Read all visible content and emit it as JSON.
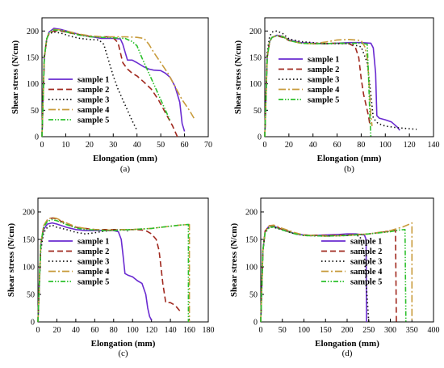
{
  "chart_data": [
    {
      "type": "line",
      "panel_label": "(a)",
      "xlabel": "Elongation (mm)",
      "ylabel": "Shear stress (N/cm)",
      "xlim": [
        0,
        70
      ],
      "ylim": [
        0,
        225
      ],
      "xticks": [
        0,
        10,
        20,
        30,
        40,
        50,
        60,
        70
      ],
      "yticks": [
        0,
        50,
        100,
        150,
        200
      ],
      "legend_position": "middle-left",
      "series": [
        {
          "name": "sample 1",
          "color": "#6a2bd1",
          "dash": "",
          "x": [
            0,
            1,
            2,
            3,
            5,
            8,
            12,
            16,
            20,
            25,
            30,
            33,
            34,
            36,
            38,
            40,
            43,
            45,
            47,
            50,
            52,
            54,
            56,
            58,
            59,
            60
          ],
          "y": [
            0,
            150,
            185,
            198,
            205,
            203,
            198,
            193,
            190,
            186,
            186,
            185,
            175,
            145,
            145,
            140,
            132,
            128,
            126,
            125,
            120,
            112,
            95,
            65,
            25,
            10
          ]
        },
        {
          "name": "sample 2",
          "color": "#a0281e",
          "dash": "7,4",
          "x": [
            0,
            1,
            2,
            3,
            5,
            8,
            12,
            16,
            20,
            25,
            28,
            30,
            32,
            34,
            36,
            38,
            40,
            43,
            46,
            49,
            52,
            55,
            57
          ],
          "y": [
            0,
            150,
            185,
            195,
            200,
            200,
            196,
            193,
            190,
            189,
            189,
            187,
            178,
            140,
            128,
            120,
            115,
            103,
            90,
            70,
            45,
            20,
            0
          ]
        },
        {
          "name": "sample 3",
          "color": "#111111",
          "dash": "1.5,3",
          "x": [
            0,
            1,
            2,
            3,
            5,
            8,
            12,
            16,
            20,
            24,
            26,
            28,
            30,
            32,
            34,
            36,
            38,
            40
          ],
          "y": [
            0,
            150,
            185,
            195,
            198,
            196,
            190,
            186,
            184,
            183,
            175,
            145,
            115,
            90,
            70,
            50,
            30,
            12
          ]
        },
        {
          "name": "sample 4",
          "color": "#c89b3c",
          "dash": "9,3,2,3",
          "x": [
            0,
            1,
            2,
            3,
            5,
            8,
            12,
            16,
            20,
            25,
            30,
            35,
            40,
            43,
            45,
            47,
            50,
            53,
            56,
            59,
            62,
            64
          ],
          "y": [
            0,
            150,
            185,
            197,
            203,
            202,
            198,
            194,
            191,
            189,
            189,
            189,
            188,
            186,
            175,
            160,
            140,
            120,
            95,
            70,
            50,
            35
          ]
        },
        {
          "name": "sample 5",
          "color": "#2cc02c",
          "dash": "6,2,1.5,2,1.5,2",
          "x": [
            0,
            1,
            2,
            3,
            5,
            8,
            12,
            16,
            20,
            25,
            30,
            35,
            38,
            40,
            42,
            44,
            46,
            48,
            50,
            52,
            54
          ],
          "y": [
            0,
            150,
            185,
            196,
            202,
            201,
            196,
            192,
            189,
            188,
            187,
            186,
            180,
            172,
            150,
            130,
            110,
            90,
            70,
            50,
            30
          ]
        }
      ]
    },
    {
      "type": "line",
      "panel_label": "(b)",
      "xlabel": "Elongation (mm)",
      "ylabel": "Shear stress (N/cm)",
      "xlim": [
        0,
        140
      ],
      "ylim": [
        0,
        225
      ],
      "xticks": [
        0,
        20,
        40,
        60,
        80,
        100,
        120,
        140
      ],
      "yticks": [
        0,
        50,
        100,
        150,
        200
      ],
      "legend_position": "middle-right",
      "series": [
        {
          "name": "sample 1",
          "color": "#6a2bd1",
          "dash": "",
          "x": [
            0,
            2,
            4,
            6,
            10,
            15,
            20,
            30,
            40,
            50,
            60,
            70,
            80,
            88,
            90,
            92,
            93,
            95,
            100,
            105,
            110,
            112
          ],
          "y": [
            0,
            150,
            180,
            188,
            192,
            190,
            183,
            178,
            177,
            176,
            177,
            178,
            178,
            177,
            168,
            120,
            40,
            35,
            32,
            28,
            18,
            12
          ]
        },
        {
          "name": "sample 2",
          "color": "#a0281e",
          "dash": "7,4",
          "x": [
            0,
            2,
            4,
            6,
            10,
            15,
            20,
            30,
            40,
            50,
            60,
            70,
            75,
            78,
            80,
            82,
            84,
            86,
            87
          ],
          "y": [
            0,
            150,
            180,
            188,
            191,
            188,
            182,
            177,
            176,
            176,
            177,
            176,
            170,
            150,
            110,
            80,
            60,
            40,
            25
          ]
        },
        {
          "name": "sample 3",
          "color": "#111111",
          "dash": "1.5,3",
          "x": [
            0,
            2,
            4,
            6,
            10,
            15,
            20,
            30,
            40,
            50,
            60,
            70,
            80,
            85,
            88,
            90,
            94,
            100,
            110,
            120,
            126
          ],
          "y": [
            0,
            160,
            190,
            198,
            200,
            195,
            185,
            180,
            178,
            176,
            176,
            176,
            170,
            140,
            80,
            35,
            25,
            20,
            17,
            15,
            14
          ]
        },
        {
          "name": "sample 4",
          "color": "#c89b3c",
          "dash": "9,3,2,3",
          "x": [
            0,
            2,
            4,
            6,
            10,
            15,
            20,
            30,
            40,
            50,
            60,
            70,
            80,
            83,
            85,
            86,
            87,
            88,
            89
          ],
          "y": [
            0,
            150,
            180,
            188,
            192,
            190,
            182,
            177,
            176,
            179,
            183,
            184,
            182,
            170,
            150,
            120,
            80,
            40,
            20
          ]
        },
        {
          "name": "sample 5",
          "color": "#2cc02c",
          "dash": "6,2,1.5,2,1.5,2",
          "x": [
            0,
            2,
            4,
            6,
            10,
            15,
            20,
            30,
            40,
            50,
            60,
            70,
            80,
            85,
            86,
            87,
            88
          ],
          "y": [
            0,
            150,
            180,
            188,
            191,
            189,
            182,
            177,
            176,
            176,
            177,
            177,
            177,
            175,
            120,
            50,
            0
          ]
        }
      ]
    },
    {
      "type": "line",
      "panel_label": "(c)",
      "xlabel": "Elongation (mm)",
      "ylabel": "Shear stress (N/cm)",
      "xlim": [
        0,
        180
      ],
      "ylim": [
        0,
        225
      ],
      "xticks": [
        0,
        20,
        40,
        60,
        80,
        100,
        120,
        140,
        160,
        180
      ],
      "yticks": [
        0,
        50,
        100,
        150,
        200
      ],
      "legend_position": "middle-left",
      "series": [
        {
          "name": "sample 1",
          "color": "#6a2bd1",
          "dash": "",
          "x": [
            0,
            3,
            6,
            10,
            15,
            20,
            30,
            40,
            50,
            60,
            70,
            80,
            85,
            88,
            90,
            92,
            95,
            100,
            105,
            110,
            114,
            116,
            118,
            120
          ],
          "y": [
            0,
            140,
            168,
            178,
            180,
            178,
            172,
            168,
            166,
            166,
            166,
            166,
            164,
            150,
            120,
            88,
            85,
            82,
            75,
            70,
            50,
            25,
            10,
            3
          ]
        },
        {
          "name": "sample 2",
          "color": "#a0281e",
          "dash": "7,4",
          "x": [
            0,
            3,
            6,
            10,
            15,
            20,
            30,
            40,
            50,
            60,
            70,
            80,
            90,
            100,
            110,
            115,
            120,
            125,
            128,
            130,
            132,
            135,
            140,
            145,
            150
          ],
          "y": [
            0,
            140,
            172,
            185,
            189,
            187,
            178,
            172,
            170,
            168,
            168,
            168,
            168,
            168,
            167,
            165,
            160,
            150,
            130,
            100,
            70,
            35,
            35,
            30,
            20
          ]
        },
        {
          "name": "sample 3",
          "color": "#111111",
          "dash": "1.5,3",
          "x": [
            0,
            3,
            6,
            10,
            15,
            20,
            30,
            40,
            50,
            60,
            70,
            80,
            90,
            95
          ],
          "y": [
            0,
            130,
            162,
            172,
            176,
            172,
            168,
            163,
            160,
            162,
            165,
            167,
            168,
            165
          ]
        },
        {
          "name": "sample 4",
          "color": "#c89b3c",
          "dash": "9,3,2,3",
          "x": [
            0,
            3,
            6,
            10,
            15,
            20,
            30,
            40,
            50,
            60,
            70,
            80,
            90,
            100,
            110,
            120,
            130,
            140,
            150,
            158,
            160,
            160
          ],
          "y": [
            0,
            140,
            175,
            186,
            190,
            188,
            180,
            173,
            170,
            168,
            167,
            167,
            168,
            168,
            169,
            170,
            172,
            174,
            176,
            177,
            177,
            0
          ]
        },
        {
          "name": "sample 5",
          "color": "#2cc02c",
          "dash": "6,2,1.5,2,1.5,2",
          "x": [
            0,
            3,
            6,
            10,
            15,
            20,
            30,
            40,
            50,
            60,
            70,
            80,
            90,
            100,
            110,
            120,
            130,
            140,
            150,
            158,
            159,
            159
          ],
          "y": [
            0,
            140,
            172,
            183,
            186,
            184,
            177,
            171,
            168,
            167,
            166,
            166,
            167,
            168,
            169,
            170,
            172,
            174,
            176,
            177,
            177,
            0
          ]
        }
      ]
    },
    {
      "type": "line",
      "panel_label": "(d)",
      "xlabel": "Elongation (mm)",
      "ylabel": "Shear stress (N/cm)",
      "xlim": [
        0,
        400
      ],
      "ylim": [
        0,
        225
      ],
      "xticks": [
        0,
        50,
        100,
        150,
        200,
        250,
        300,
        350,
        400
      ],
      "yticks": [
        0,
        50,
        100,
        150,
        200
      ],
      "legend_position": "middle-center",
      "series": [
        {
          "name": "sample 1",
          "color": "#6a2bd1",
          "dash": "",
          "x": [
            0,
            5,
            10,
            20,
            30,
            50,
            80,
            100,
            120,
            150,
            180,
            200,
            220,
            240,
            244,
            245
          ],
          "y": [
            0,
            130,
            165,
            175,
            174,
            168,
            160,
            158,
            157,
            158,
            159,
            160,
            160,
            158,
            150,
            0
          ]
        },
        {
          "name": "sample 2",
          "color": "#a0281e",
          "dash": "7,4",
          "x": [
            0,
            5,
            10,
            20,
            30,
            50,
            80,
            100,
            150,
            200,
            250,
            280,
            300,
            312,
            314
          ],
          "y": [
            0,
            130,
            165,
            175,
            175,
            168,
            161,
            158,
            157,
            158,
            160,
            163,
            165,
            166,
            0
          ]
        },
        {
          "name": "sample 3",
          "color": "#111111",
          "dash": "1.5,3",
          "x": [
            0,
            5,
            10,
            20,
            30,
            50,
            80,
            100,
            150,
            200,
            220,
            230,
            240,
            245,
            250
          ],
          "y": [
            0,
            130,
            162,
            172,
            172,
            167,
            160,
            157,
            156,
            157,
            158,
            155,
            120,
            60,
            0
          ]
        },
        {
          "name": "sample 4",
          "color": "#c89b3c",
          "dash": "9,3,2,3",
          "x": [
            0,
            5,
            10,
            20,
            30,
            50,
            80,
            100,
            150,
            200,
            250,
            300,
            330,
            345,
            350,
            350
          ],
          "y": [
            0,
            130,
            165,
            175,
            176,
            170,
            162,
            158,
            156,
            157,
            160,
            166,
            173,
            178,
            180,
            0
          ]
        },
        {
          "name": "sample 5",
          "color": "#2cc02c",
          "dash": "6,2,1.5,2,1.5,2",
          "x": [
            0,
            5,
            10,
            20,
            30,
            50,
            80,
            100,
            150,
            200,
            250,
            300,
            320,
            334,
            336
          ],
          "y": [
            0,
            130,
            162,
            172,
            173,
            167,
            160,
            157,
            156,
            157,
            160,
            164,
            167,
            168,
            0
          ]
        }
      ]
    }
  ]
}
